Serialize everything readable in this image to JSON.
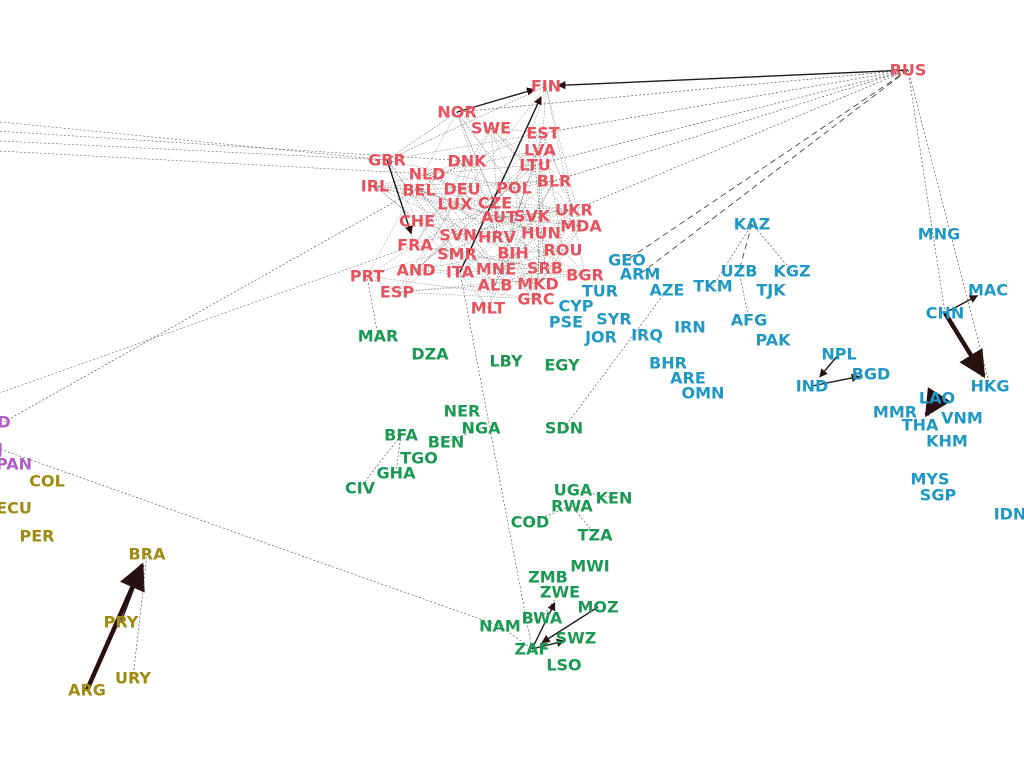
{
  "chart_data": {
    "type": "network",
    "regions": {
      "europe": {
        "color": "#e8525c"
      },
      "asia": {
        "color": "#1f98c6"
      },
      "africa": {
        "color": "#1a9a50"
      },
      "south_america": {
        "color": "#a08a10"
      },
      "central_america": {
        "color": "#b25cc8"
      }
    },
    "nodes": [
      {
        "id": "RUS",
        "region": "europe"
      },
      {
        "id": "FIN",
        "region": "europe"
      },
      {
        "id": "NOR",
        "region": "europe"
      },
      {
        "id": "SWE",
        "region": "europe"
      },
      {
        "id": "EST",
        "region": "europe"
      },
      {
        "id": "LVA",
        "region": "europe"
      },
      {
        "id": "LTU",
        "region": "europe"
      },
      {
        "id": "GBR",
        "region": "europe"
      },
      {
        "id": "DNK",
        "region": "europe"
      },
      {
        "id": "NLD",
        "region": "europe"
      },
      {
        "id": "IRL",
        "region": "europe"
      },
      {
        "id": "BEL",
        "region": "europe"
      },
      {
        "id": "DEU",
        "region": "europe"
      },
      {
        "id": "POL",
        "region": "europe"
      },
      {
        "id": "BLR",
        "region": "europe"
      },
      {
        "id": "LUX",
        "region": "europe"
      },
      {
        "id": "CZE",
        "region": "europe"
      },
      {
        "id": "SVK",
        "region": "europe"
      },
      {
        "id": "UKR",
        "region": "europe"
      },
      {
        "id": "CHE",
        "region": "europe"
      },
      {
        "id": "AUT",
        "region": "europe"
      },
      {
        "id": "HUN",
        "region": "europe"
      },
      {
        "id": "MDA",
        "region": "europe"
      },
      {
        "id": "SVN",
        "region": "europe"
      },
      {
        "id": "HRV",
        "region": "europe"
      },
      {
        "id": "ROU",
        "region": "europe"
      },
      {
        "id": "FRA",
        "region": "europe"
      },
      {
        "id": "SMR",
        "region": "europe"
      },
      {
        "id": "BIH",
        "region": "europe"
      },
      {
        "id": "SRB",
        "region": "europe"
      },
      {
        "id": "BGR",
        "region": "europe"
      },
      {
        "id": "AND",
        "region": "europe"
      },
      {
        "id": "ITA",
        "region": "europe"
      },
      {
        "id": "MNE",
        "region": "europe"
      },
      {
        "id": "PRT",
        "region": "europe"
      },
      {
        "id": "ALB",
        "region": "europe"
      },
      {
        "id": "MKD",
        "region": "europe"
      },
      {
        "id": "ESP",
        "region": "europe"
      },
      {
        "id": "GRC",
        "region": "europe"
      },
      {
        "id": "MLT",
        "region": "europe"
      },
      {
        "id": "KAZ",
        "region": "asia"
      },
      {
        "id": "MNG",
        "region": "asia"
      },
      {
        "id": "GEO",
        "region": "asia"
      },
      {
        "id": "ARM",
        "region": "asia"
      },
      {
        "id": "UZB",
        "region": "asia"
      },
      {
        "id": "KGZ",
        "region": "asia"
      },
      {
        "id": "TKM",
        "region": "asia"
      },
      {
        "id": "TUR",
        "region": "asia"
      },
      {
        "id": "AZE",
        "region": "asia"
      },
      {
        "id": "TJK",
        "region": "asia"
      },
      {
        "id": "MAC",
        "region": "asia"
      },
      {
        "id": "CYP",
        "region": "asia"
      },
      {
        "id": "CHN",
        "region": "asia"
      },
      {
        "id": "SYR",
        "region": "asia"
      },
      {
        "id": "PSE",
        "region": "asia"
      },
      {
        "id": "AFG",
        "region": "asia"
      },
      {
        "id": "JOR",
        "region": "asia"
      },
      {
        "id": "IRQ",
        "region": "asia"
      },
      {
        "id": "IRN",
        "region": "asia"
      },
      {
        "id": "PAK",
        "region": "asia"
      },
      {
        "id": "NPL",
        "region": "asia"
      },
      {
        "id": "BHR",
        "region": "asia"
      },
      {
        "id": "BGD",
        "region": "asia"
      },
      {
        "id": "ARE",
        "region": "asia"
      },
      {
        "id": "IND",
        "region": "asia"
      },
      {
        "id": "OMN",
        "region": "asia"
      },
      {
        "id": "HKG",
        "region": "asia"
      },
      {
        "id": "LAO",
        "region": "asia"
      },
      {
        "id": "MMR",
        "region": "asia"
      },
      {
        "id": "VNM",
        "region": "asia"
      },
      {
        "id": "THA",
        "region": "asia"
      },
      {
        "id": "KHM",
        "region": "asia"
      },
      {
        "id": "MYS",
        "region": "asia"
      },
      {
        "id": "SGP",
        "region": "asia"
      },
      {
        "id": "IDN",
        "region": "asia"
      },
      {
        "id": "MAR",
        "region": "africa"
      },
      {
        "id": "DZA",
        "region": "africa"
      },
      {
        "id": "LBY",
        "region": "africa"
      },
      {
        "id": "EGY",
        "region": "africa"
      },
      {
        "id": "NER",
        "region": "africa"
      },
      {
        "id": "BFA",
        "region": "africa"
      },
      {
        "id": "NGA",
        "region": "africa"
      },
      {
        "id": "BEN",
        "region": "africa"
      },
      {
        "id": "SDN",
        "region": "africa"
      },
      {
        "id": "TGO",
        "region": "africa"
      },
      {
        "id": "GHA",
        "region": "africa"
      },
      {
        "id": "CIV",
        "region": "africa"
      },
      {
        "id": "UGA",
        "region": "africa"
      },
      {
        "id": "KEN",
        "region": "africa"
      },
      {
        "id": "RWA",
        "region": "africa"
      },
      {
        "id": "COD",
        "region": "africa"
      },
      {
        "id": "TZA",
        "region": "africa"
      },
      {
        "id": "MWI",
        "region": "africa"
      },
      {
        "id": "ZMB",
        "region": "africa"
      },
      {
        "id": "ZWE",
        "region": "africa"
      },
      {
        "id": "MOZ",
        "region": "africa"
      },
      {
        "id": "BWA",
        "region": "africa"
      },
      {
        "id": "NAM",
        "region": "africa"
      },
      {
        "id": "SWZ",
        "region": "africa"
      },
      {
        "id": "ZAF",
        "region": "africa"
      },
      {
        "id": "LSO",
        "region": "africa"
      },
      {
        "id": "COL",
        "region": "south_america"
      },
      {
        "id": "ECU",
        "region": "south_america"
      },
      {
        "id": "PER",
        "region": "south_america"
      },
      {
        "id": "BRA",
        "region": "south_america"
      },
      {
        "id": "PRY",
        "region": "south_america"
      },
      {
        "id": "URY",
        "region": "south_america"
      },
      {
        "id": "ARG",
        "region": "south_america"
      },
      {
        "id": "PAN",
        "region": "central_america"
      },
      {
        "id": "D",
        "region": "central_america"
      },
      {
        "id": "J",
        "region": "central_america"
      }
    ],
    "edges": [
      {
        "from": "ARG",
        "to": "BRA",
        "kind": "strong"
      },
      {
        "from": "PRY",
        "to": "BRA",
        "kind": "solid"
      },
      {
        "from": "URY",
        "to": "BRA",
        "kind": "dotted"
      },
      {
        "from": "CHN",
        "to": "HKG",
        "kind": "strong"
      },
      {
        "from": "CHN",
        "to": "MAC",
        "kind": "solid"
      },
      {
        "from": "LAO",
        "to": "THA",
        "kind": "strong"
      },
      {
        "from": "ITA",
        "to": "FIN",
        "kind": "solid"
      },
      {
        "from": "GBR",
        "to": "FRA",
        "kind": "solid"
      },
      {
        "from": "NOR",
        "to": "FIN",
        "kind": "solid"
      },
      {
        "from": "RUS",
        "to": "FIN",
        "kind": "solid"
      },
      {
        "from": "RUS",
        "to": "GEO",
        "kind": "dashed"
      },
      {
        "from": "RUS",
        "to": "ARM",
        "kind": "dashed"
      },
      {
        "from": "RUS",
        "to": "CHN",
        "kind": "dotted"
      },
      {
        "from": "RUS",
        "to": "HKG",
        "kind": "dotted"
      },
      {
        "from": "RUS",
        "to": "NOR",
        "kind": "dotted"
      },
      {
        "from": "RUS",
        "to": "LTU",
        "kind": "dotted"
      },
      {
        "from": "RUS",
        "to": "EST",
        "kind": "dotted"
      },
      {
        "from": "RUS",
        "to": "BLR",
        "kind": "dotted"
      },
      {
        "from": "RUS",
        "to": "UKR",
        "kind": "dotted"
      },
      {
        "from": "KAZ",
        "to": "UZB",
        "kind": "dashed"
      },
      {
        "from": "KAZ",
        "to": "TKM",
        "kind": "dotted"
      },
      {
        "from": "KAZ",
        "to": "KGZ",
        "kind": "dotted"
      },
      {
        "from": "UZB",
        "to": "AFG",
        "kind": "dotted"
      },
      {
        "from": "IND",
        "to": "BGD",
        "kind": "solid"
      },
      {
        "from": "NPL",
        "to": "IND",
        "kind": "solid"
      },
      {
        "from": "CIV",
        "to": "BFA",
        "kind": "dotted"
      },
      {
        "from": "GHA",
        "to": "BFA",
        "kind": "dotted"
      },
      {
        "from": "BEN",
        "to": "NGA",
        "kind": "dotted"
      },
      {
        "from": "NAM",
        "to": "ZAF",
        "kind": "dotted"
      },
      {
        "from": "ZAF",
        "to": "ZWE",
        "kind": "solid"
      },
      {
        "from": "ZAF",
        "to": "SWZ",
        "kind": "solid"
      },
      {
        "from": "MOZ",
        "to": "ZAF",
        "kind": "solid"
      },
      {
        "from": "BWA",
        "to": "ZWE",
        "kind": "dotted"
      },
      {
        "from": "COD",
        "to": "RWA",
        "kind": "dotted"
      },
      {
        "from": "UGA",
        "to": "KEN",
        "kind": "dotted"
      },
      {
        "from": "TZA",
        "to": "RWA",
        "kind": "dotted"
      },
      {
        "from": "MAR",
        "to": "PRT",
        "kind": "dotted"
      },
      {
        "from": "SDN",
        "to": "AZE",
        "kind": "dotted"
      },
      {
        "from": "ITA",
        "to": "ZAF",
        "kind": "dotted"
      },
      {
        "from": "NAM",
        "to": "J",
        "kind": "dotted"
      },
      {
        "from": "D",
        "to": "DNK",
        "kind": "dotted"
      }
    ]
  }
}
